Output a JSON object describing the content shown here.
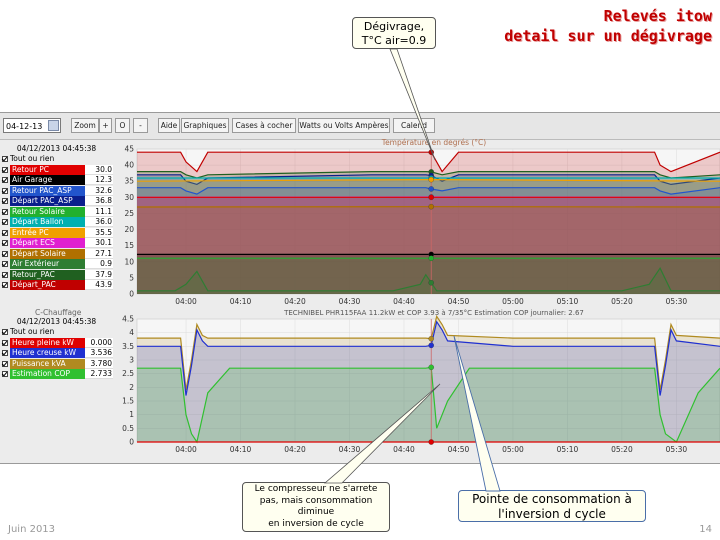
{
  "slide": {
    "title_line1": "Relevés itow",
    "title_line2": "detail sur un dégivrage",
    "footer_date": "Juin 2013",
    "page_number": "14"
  },
  "callouts": {
    "defrost_line1": "Dégivrage,",
    "defrost_line2": "T°C air=0.9",
    "compressor_line1": "Le compresseur ne s'arrete",
    "compressor_line2": "pas, mais consommation",
    "compressor_line3": "diminue",
    "compressor_line4": "en inversion de cycle",
    "peak_line1": "Pointe de consommation à",
    "peak_line2": "l'inversion d cycle"
  },
  "toolbar": {
    "date_value": "04-12-13",
    "zoom_label": "Zoom",
    "plus_label": "+",
    "reset_label": "O",
    "minus_label": "-",
    "help_label": "Aide",
    "graphs_label": "Graphiques",
    "checkboxes_label": "Cases à cocher",
    "watts_label": "Watts ou Volts Ampères",
    "calendar_label": "Calend"
  },
  "top_panel": {
    "timestamp": "04/12/2013 04:45:38",
    "all_label": "Tout ou rien",
    "chart_title": "Température en degrés (°C)",
    "items": [
      {
        "label": "Retour PC",
        "value": "30.0",
        "color": "#e00000"
      },
      {
        "label": "Air Garage",
        "value": "12.3",
        "color": "#000000"
      },
      {
        "label": "Retour PAC_ASP",
        "value": "32.6",
        "color": "#2255cc"
      },
      {
        "label": "Départ PAC_ASP",
        "value": "36.8",
        "color": "#0a1e8c"
      },
      {
        "label": "Retour Solaire",
        "value": "11.1",
        "color": "#22b02e"
      },
      {
        "label": "Départ Ballon",
        "value": "36.0",
        "color": "#00b0b0"
      },
      {
        "label": "Entrée PC",
        "value": "35.5",
        "color": "#f0a000"
      },
      {
        "label": "Départ ECS",
        "value": "30.1",
        "color": "#e020d0"
      },
      {
        "label": "Départ Solaire",
        "value": "27.1",
        "color": "#b07000"
      },
      {
        "label": "Air Extérieur",
        "value": "0.9",
        "color": "#2e7d32"
      },
      {
        "label": "Retour_PAC",
        "value": "37.9",
        "color": "#206020"
      },
      {
        "label": "Départ_PAC",
        "value": "43.9",
        "color": "#c00000"
      }
    ]
  },
  "bottom_panel": {
    "section_label": "C-Chauffage",
    "timestamp": "04/12/2013 04:45:38",
    "all_label": "Tout ou rien",
    "chart_title": "TECHNIBEL PHR115FAA 11.2kW et COP 3.93 à 7/35°C      Estimation COP journalier: 2.67",
    "items": [
      {
        "label": "Heure pleine kW",
        "value": "0.000",
        "color": "#e00000"
      },
      {
        "label": "Heure creuse kW",
        "value": "3.536",
        "color": "#2030d0"
      },
      {
        "label": "Puissance kVA",
        "value": "3.780",
        "color": "#b08a20"
      },
      {
        "label": "Estimation COP",
        "value": "2.733",
        "color": "#30c030"
      }
    ]
  },
  "chart_data": [
    {
      "type": "area",
      "title": "Température en degrés (°C)",
      "x_ticks": [
        "04:00",
        "04:10",
        "04:20",
        "04:30",
        "04:40",
        "04:50",
        "05:00",
        "05:10",
        "05:20",
        "05:30"
      ],
      "x_range": [
        "03:51",
        "05:38"
      ],
      "ylim": [
        0,
        45
      ],
      "y_ticks": [
        0,
        5,
        10,
        15,
        20,
        25,
        30,
        35,
        40,
        45
      ],
      "cursor_time": "04:45",
      "series": [
        {
          "name": "Départ_PAC",
          "color": "#c00000",
          "x": [
            "03:51",
            "03:59",
            "04:00",
            "04:02",
            "04:04",
            "04:34",
            "04:44",
            "04:45",
            "04:47",
            "04:50",
            "05:20",
            "05:26",
            "05:27",
            "05:29",
            "05:38"
          ],
          "values": [
            44,
            44,
            41,
            38,
            44,
            44,
            44,
            44,
            38,
            44,
            44,
            44,
            40,
            38,
            44
          ]
        },
        {
          "name": "Retour_PAC",
          "color": "#206020",
          "x": [
            "03:51",
            "03:59",
            "04:00",
            "04:02",
            "04:04",
            "04:34",
            "04:44",
            "04:45",
            "04:47",
            "04:50",
            "05:20",
            "05:26",
            "05:27",
            "05:29",
            "05:38"
          ],
          "values": [
            38,
            38,
            37,
            36,
            37,
            38,
            38,
            37.9,
            37,
            38,
            38,
            38,
            37,
            36,
            37
          ]
        },
        {
          "name": "Départ PAC_ASP",
          "color": "#0a1e8c",
          "x": [
            "03:51",
            "03:59",
            "04:00",
            "04:02",
            "04:04",
            "04:34",
            "04:44",
            "04:45",
            "04:47",
            "04:50",
            "05:20",
            "05:26",
            "05:27",
            "05:29",
            "05:38"
          ],
          "values": [
            37,
            37,
            35,
            34,
            36,
            37,
            37,
            36.8,
            35,
            37,
            37,
            37,
            35,
            34,
            36
          ]
        },
        {
          "name": "Départ Ballon",
          "color": "#00b0b0",
          "x": [
            "03:51",
            "04:45",
            "05:38"
          ],
          "values": [
            36,
            36,
            36
          ]
        },
        {
          "name": "Entrée PC",
          "color": "#f0a000",
          "x": [
            "03:51",
            "04:45",
            "05:38"
          ],
          "values": [
            35,
            35.5,
            35
          ]
        },
        {
          "name": "Retour PAC_ASP",
          "color": "#2255cc",
          "x": [
            "03:51",
            "03:59",
            "04:00",
            "04:02",
            "04:04",
            "04:34",
            "04:44",
            "04:45",
            "04:47",
            "04:50",
            "05:20",
            "05:26",
            "05:27",
            "05:29",
            "05:38"
          ],
          "values": [
            33,
            33,
            32,
            31,
            33,
            33,
            33,
            32.6,
            32,
            33,
            33,
            33,
            32,
            31,
            33
          ]
        },
        {
          "name": "Départ ECS",
          "color": "#e020d0",
          "x": [
            "03:51",
            "04:45",
            "05:38"
          ],
          "values": [
            30,
            30.1,
            30
          ]
        },
        {
          "name": "Retour PC",
          "color": "#e00000",
          "x": [
            "03:51",
            "04:45",
            "05:38"
          ],
          "values": [
            30,
            30,
            30
          ]
        },
        {
          "name": "Départ Solaire",
          "color": "#b07000",
          "x": [
            "03:51",
            "04:45",
            "05:38"
          ],
          "values": [
            27,
            27.1,
            27
          ]
        },
        {
          "name": "Air Garage",
          "color": "#000000",
          "x": [
            "03:51",
            "04:45",
            "05:38"
          ],
          "values": [
            12.3,
            12.3,
            12.3
          ]
        },
        {
          "name": "Retour Solaire",
          "color": "#22b02e",
          "x": [
            "03:51",
            "04:45",
            "05:38"
          ],
          "values": [
            11.1,
            11.1,
            11.1
          ]
        },
        {
          "name": "Air Extérieur",
          "color": "#2e7d32",
          "x": [
            "03:51",
            "03:58",
            "04:00",
            "04:02",
            "04:04",
            "04:38",
            "04:43",
            "04:44",
            "04:46",
            "04:48",
            "05:20",
            "05:25",
            "05:27",
            "05:29",
            "05:38"
          ],
          "values": [
            1,
            1,
            3,
            7,
            1,
            1,
            3,
            6,
            1,
            1,
            1,
            3,
            8,
            1,
            1
          ]
        }
      ]
    },
    {
      "type": "area",
      "title": "TECHNIBEL PHR115FAA 11.2kW et COP 3.93 à 7/35°C      Estimation COP journalier: 2.67",
      "x_ticks": [
        "04:00",
        "04:10",
        "04:20",
        "04:30",
        "04:40",
        "04:50",
        "05:00",
        "05:10",
        "05:20",
        "05:30"
      ],
      "x_range": [
        "03:51",
        "05:38"
      ],
      "ylim": [
        0,
        4.5
      ],
      "y_ticks": [
        0,
        0.5,
        1,
        1.5,
        2,
        2.5,
        3,
        3.5,
        4,
        4.5
      ],
      "cursor_time": "04:45",
      "series": [
        {
          "name": "Puissance kVA",
          "color": "#b08a20",
          "x": [
            "03:51",
            "03:59",
            "04:00",
            "04:01",
            "04:02",
            "04:03",
            "04:04",
            "04:20",
            "04:44",
            "04:45",
            "04:46",
            "04:47",
            "04:48",
            "05:00",
            "05:26",
            "05:27",
            "05:28",
            "05:29",
            "05:30",
            "05:38"
          ],
          "values": [
            3.8,
            3.8,
            1.9,
            3.0,
            4.3,
            3.9,
            3.8,
            3.8,
            3.8,
            3.78,
            4.6,
            4.3,
            3.9,
            3.8,
            3.8,
            1.9,
            3.0,
            4.3,
            3.9,
            3.8
          ]
        },
        {
          "name": "Heure creuse kW",
          "color": "#2030d0",
          "x": [
            "03:51",
            "03:59",
            "04:00",
            "04:01",
            "04:02",
            "04:03",
            "04:04",
            "04:20",
            "04:44",
            "04:45",
            "04:46",
            "04:47",
            "04:48",
            "05:00",
            "05:26",
            "05:27",
            "05:28",
            "05:29",
            "05:30",
            "05:38"
          ],
          "values": [
            3.5,
            3.5,
            1.7,
            2.8,
            4.1,
            3.7,
            3.5,
            3.5,
            3.5,
            3.536,
            4.4,
            4.1,
            3.7,
            3.5,
            3.5,
            1.7,
            2.8,
            4.1,
            3.7,
            3.5
          ]
        },
        {
          "name": "Estimation COP",
          "color": "#30c030",
          "x": [
            "03:51",
            "03:59",
            "04:00",
            "04:01",
            "04:02",
            "04:04",
            "04:08",
            "04:44",
            "04:45",
            "04:46",
            "04:48",
            "04:52",
            "05:26",
            "05:27",
            "05:28",
            "05:30",
            "05:34",
            "05:38"
          ],
          "values": [
            2.7,
            2.7,
            1.0,
            0.3,
            0,
            1.8,
            2.7,
            2.7,
            2.733,
            0.5,
            1.5,
            2.7,
            2.7,
            1.0,
            0.3,
            0,
            1.8,
            2.7
          ]
        },
        {
          "name": "Heure pleine kW",
          "color": "#e00000",
          "x": [
            "03:51",
            "04:45",
            "05:38"
          ],
          "values": [
            0,
            0,
            0
          ]
        }
      ]
    }
  ]
}
